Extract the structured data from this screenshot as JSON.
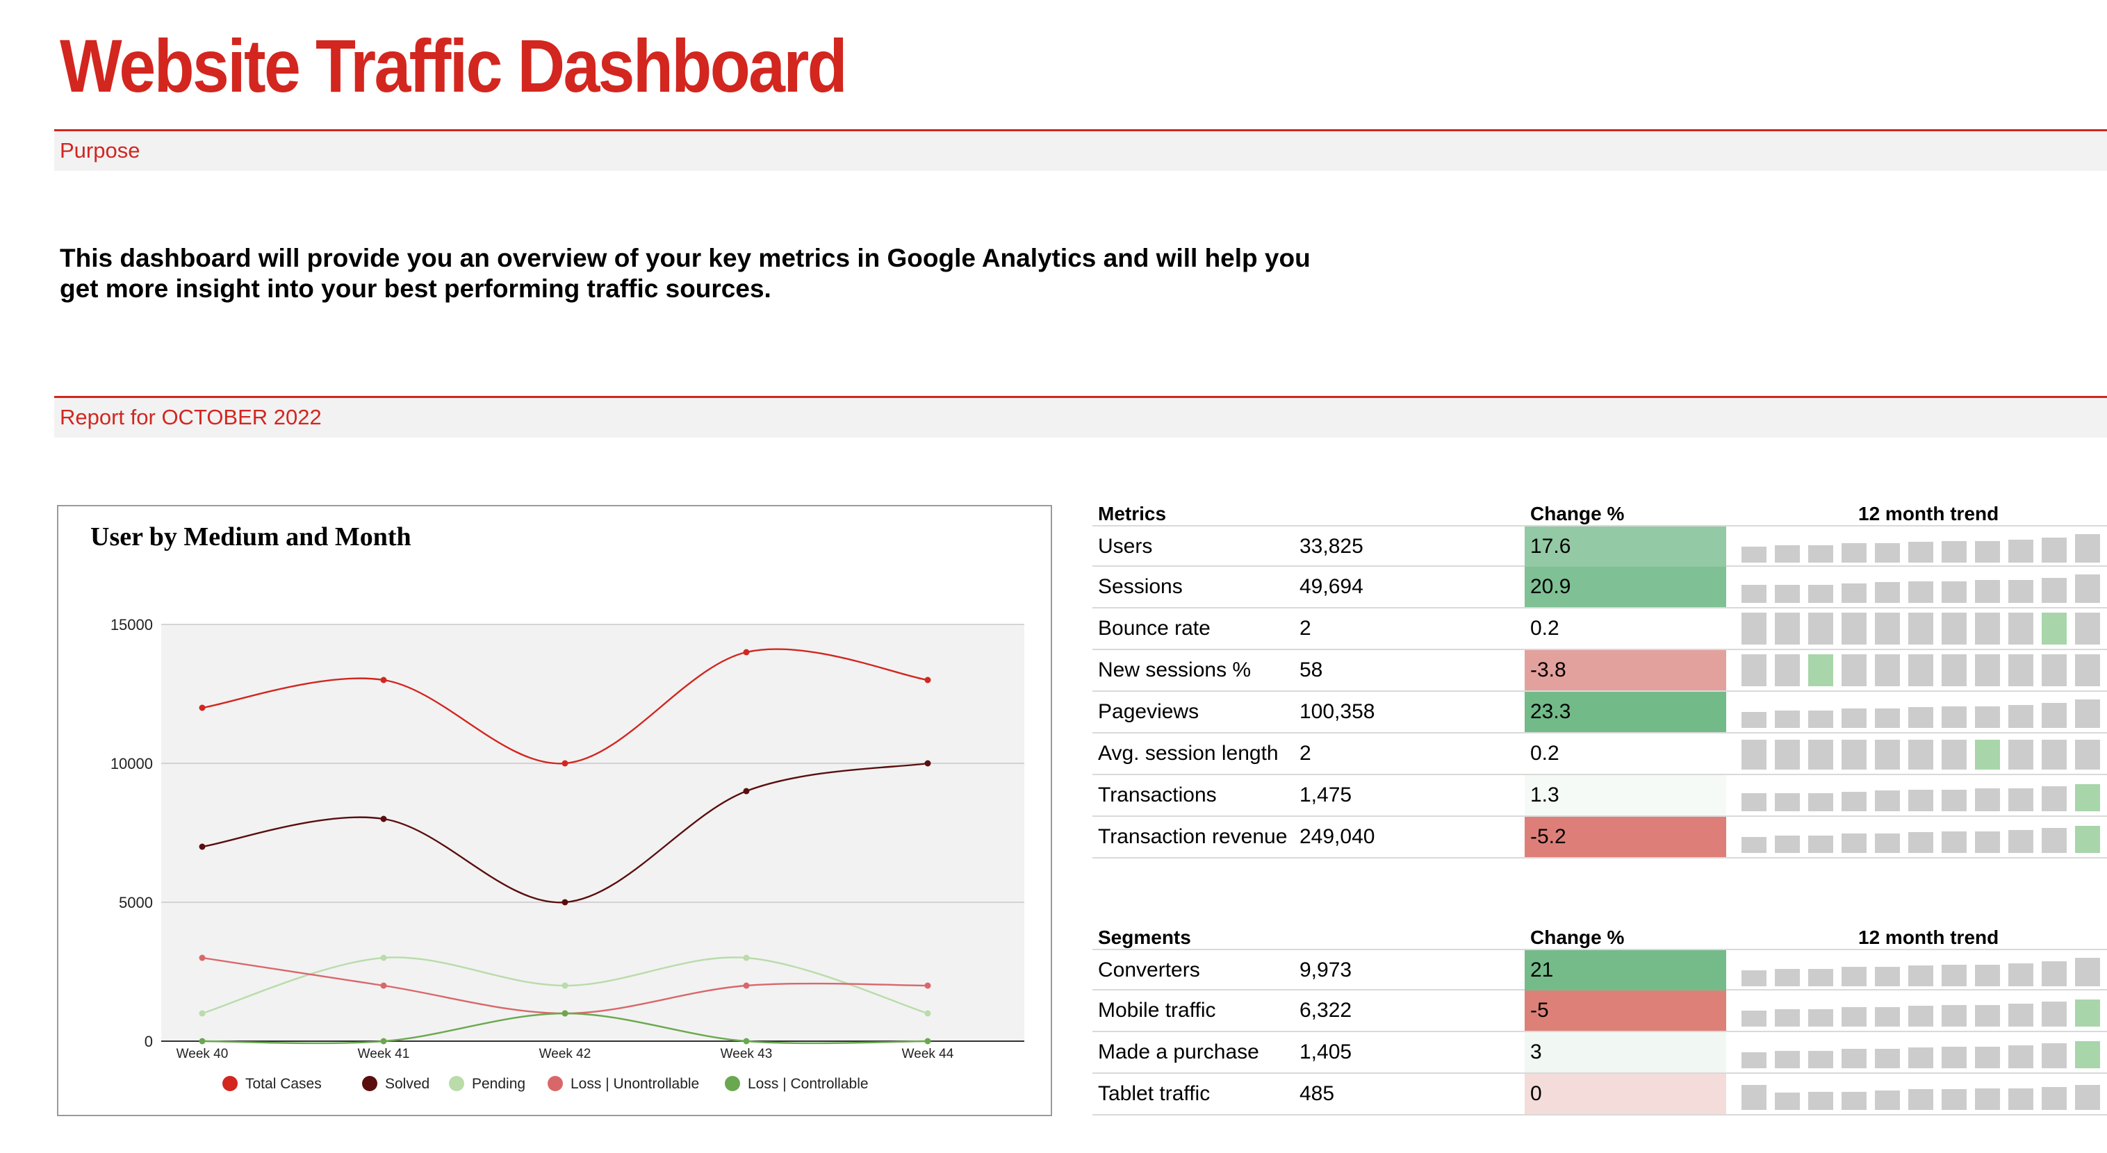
{
  "header": {
    "title": "Website Traffic Dashboard"
  },
  "purpose": {
    "label": "Purpose",
    "text": "This dashboard will provide you an overview of your key metrics in Google Analytics and will help you get more insight into your best performing traffic sources."
  },
  "report": {
    "label": "Report for OCTOBER 2022"
  },
  "colors": {
    "accent": "#d2261f",
    "section_bg": "#f2f2f2",
    "trend_bar": "#cccccc",
    "trend_highlight": "#a8d5aa"
  },
  "chart_data": {
    "type": "line",
    "title": "User by Medium and Month",
    "categories": [
      "Week 40",
      "Week 41",
      "Week 42",
      "Week 43",
      "Week 44"
    ],
    "yticks": [
      "15000",
      "10000",
      "5000",
      "0"
    ],
    "ylim": [
      0,
      15000
    ],
    "grid": true,
    "legend_position": "bottom",
    "series": [
      {
        "name": "Total Cases",
        "color": "#d2261f",
        "values": [
          12000,
          13000,
          10000,
          14000,
          13000
        ]
      },
      {
        "name": "Solved",
        "color": "#5a0e0e",
        "values": [
          7000,
          8000,
          5000,
          9000,
          10000
        ]
      },
      {
        "name": "Pending",
        "color": "#b9dcaa",
        "values": [
          1000,
          3000,
          2000,
          3000,
          1000
        ]
      },
      {
        "name": "Loss  | Unontrollable",
        "color": "#d9676a",
        "values": [
          3000,
          2000,
          1000,
          2000,
          2000
        ]
      },
      {
        "name": "Loss  | Controllable",
        "color": "#6aa84f",
        "values": [
          0,
          0,
          1000,
          0,
          0
        ]
      }
    ]
  },
  "metrics": {
    "headers": {
      "name": "Metrics",
      "change": "Change %",
      "trend": "12 month trend"
    },
    "rows": [
      {
        "name": "Users",
        "value": "33,825",
        "change": "17.6",
        "change_color": "#93c9a4",
        "trend": [
          14,
          15,
          15,
          17,
          17,
          18,
          19,
          19,
          20,
          22,
          25,
          26,
          28
        ],
        "trend_highlight": [
          12
        ]
      },
      {
        "name": "Sessions",
        "value": "49,694",
        "change": "20.9",
        "change_color": "#7fc094",
        "trend": [
          16,
          16,
          16,
          17,
          18,
          19,
          19,
          20,
          20,
          22,
          25,
          27,
          28
        ],
        "trend_highlight": [
          12
        ]
      },
      {
        "name": "Bounce rate",
        "value": "2",
        "change": "0.2",
        "change_color": "#ffffff",
        "trend": [
          28,
          28,
          28,
          28,
          28,
          28,
          28,
          28,
          28,
          28,
          28,
          28,
          28
        ],
        "trend_highlight": [
          9
        ]
      },
      {
        "name": "New sessions %",
        "value": "58",
        "change": "-3.8",
        "change_color": "#e3a19d",
        "trend": [
          28,
          28,
          28,
          28,
          28,
          28,
          28,
          28,
          28,
          28,
          28,
          28,
          28
        ],
        "trend_highlight": [
          2
        ]
      },
      {
        "name": "Pageviews",
        "value": "100,358",
        "change": "23.3",
        "change_color": "#72ba88",
        "trend": [
          14,
          15,
          15,
          17,
          17,
          18,
          19,
          19,
          20,
          22,
          25,
          26,
          28
        ],
        "trend_highlight": [
          12
        ]
      },
      {
        "name": "Avg. session length",
        "value": "2",
        "change": "0.2",
        "change_color": "#ffffff",
        "trend": [
          26,
          26,
          26,
          26,
          26,
          26,
          26,
          26,
          26,
          26,
          26,
          26,
          26
        ],
        "trend_highlight": [
          7
        ]
      },
      {
        "name": "Transactions",
        "value": "1,475",
        "change": "1.3",
        "change_color": "#f5faf6",
        "trend": [
          16,
          16,
          16,
          17,
          18,
          19,
          19,
          20,
          20,
          22,
          24,
          26,
          26
        ],
        "trend_highlight": [
          10
        ]
      },
      {
        "name": "Transaction revenue",
        "value": "249,040",
        "change": "-5.2",
        "change_color": "#dd7f78",
        "trend": [
          14,
          15,
          15,
          17,
          17,
          18,
          19,
          19,
          20,
          22,
          24,
          26,
          26
        ],
        "trend_highlight": [
          10
        ]
      }
    ]
  },
  "segments": {
    "headers": {
      "name": "Segments",
      "change": "Change %",
      "trend": "12 month trend"
    },
    "rows": [
      {
        "name": "Converters",
        "value": "9,973",
        "change": "21",
        "change_color": "#75bb8a",
        "trend": [
          14,
          15,
          15,
          17,
          17,
          18,
          19,
          19,
          20,
          22,
          25,
          26,
          28
        ],
        "trend_highlight": [
          12
        ]
      },
      {
        "name": "Mobile traffic",
        "value": "6,322",
        "change": "-5",
        "change_color": "#dd8078",
        "trend": [
          14,
          15,
          15,
          17,
          17,
          18,
          19,
          19,
          20,
          22,
          24,
          26,
          26
        ],
        "trend_highlight": [
          10
        ]
      },
      {
        "name": "Made a purchase",
        "value": "1,405",
        "change": "3",
        "change_color": "#f1f7f2",
        "trend": [
          14,
          15,
          15,
          17,
          17,
          18,
          19,
          19,
          20,
          22,
          24,
          26,
          26
        ],
        "trend_highlight": [
          10
        ]
      },
      {
        "name": "Tablet traffic",
        "value": "485",
        "change": "0",
        "change_color": "#f3dcda",
        "trend": [
          22,
          15,
          16,
          16,
          17,
          18,
          18,
          19,
          19,
          20,
          22,
          24,
          26
        ],
        "trend_highlight": []
      }
    ]
  }
}
